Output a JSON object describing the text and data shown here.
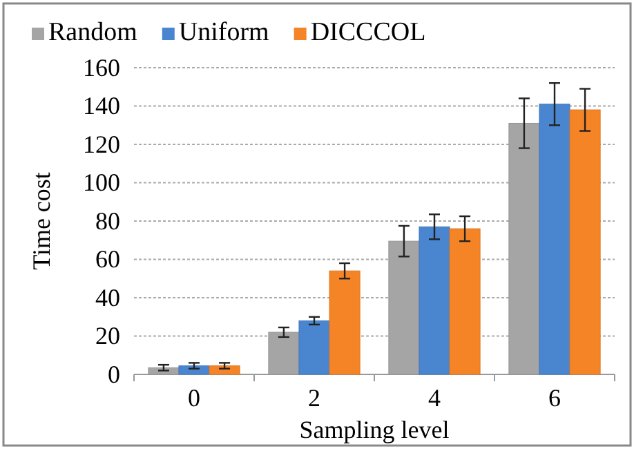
{
  "chart_data": {
    "type": "bar",
    "xlabel": "Sampling  level",
    "ylabel": "Time cost",
    "categories": [
      "0",
      "2",
      "4",
      "6"
    ],
    "series": [
      {
        "name": "Random",
        "color": "#a5a5a5",
        "values": [
          3.5,
          22,
          69.5,
          131
        ],
        "errors": [
          1.5,
          2.5,
          8,
          13
        ]
      },
      {
        "name": "Uniform",
        "color": "#4a86d0",
        "values": [
          4.5,
          28,
          77,
          141
        ],
        "errors": [
          1.5,
          2,
          6.5,
          11
        ]
      },
      {
        "name": "DICCCOL",
        "color": "#f58426",
        "values": [
          4.5,
          54,
          76,
          138
        ],
        "errors": [
          1.5,
          4,
          6.5,
          11
        ]
      }
    ],
    "ylim": [
      0,
      160
    ],
    "yticks": [
      0,
      20,
      40,
      60,
      80,
      100,
      120,
      140,
      160
    ],
    "grid": "y",
    "legend": "top left"
  }
}
